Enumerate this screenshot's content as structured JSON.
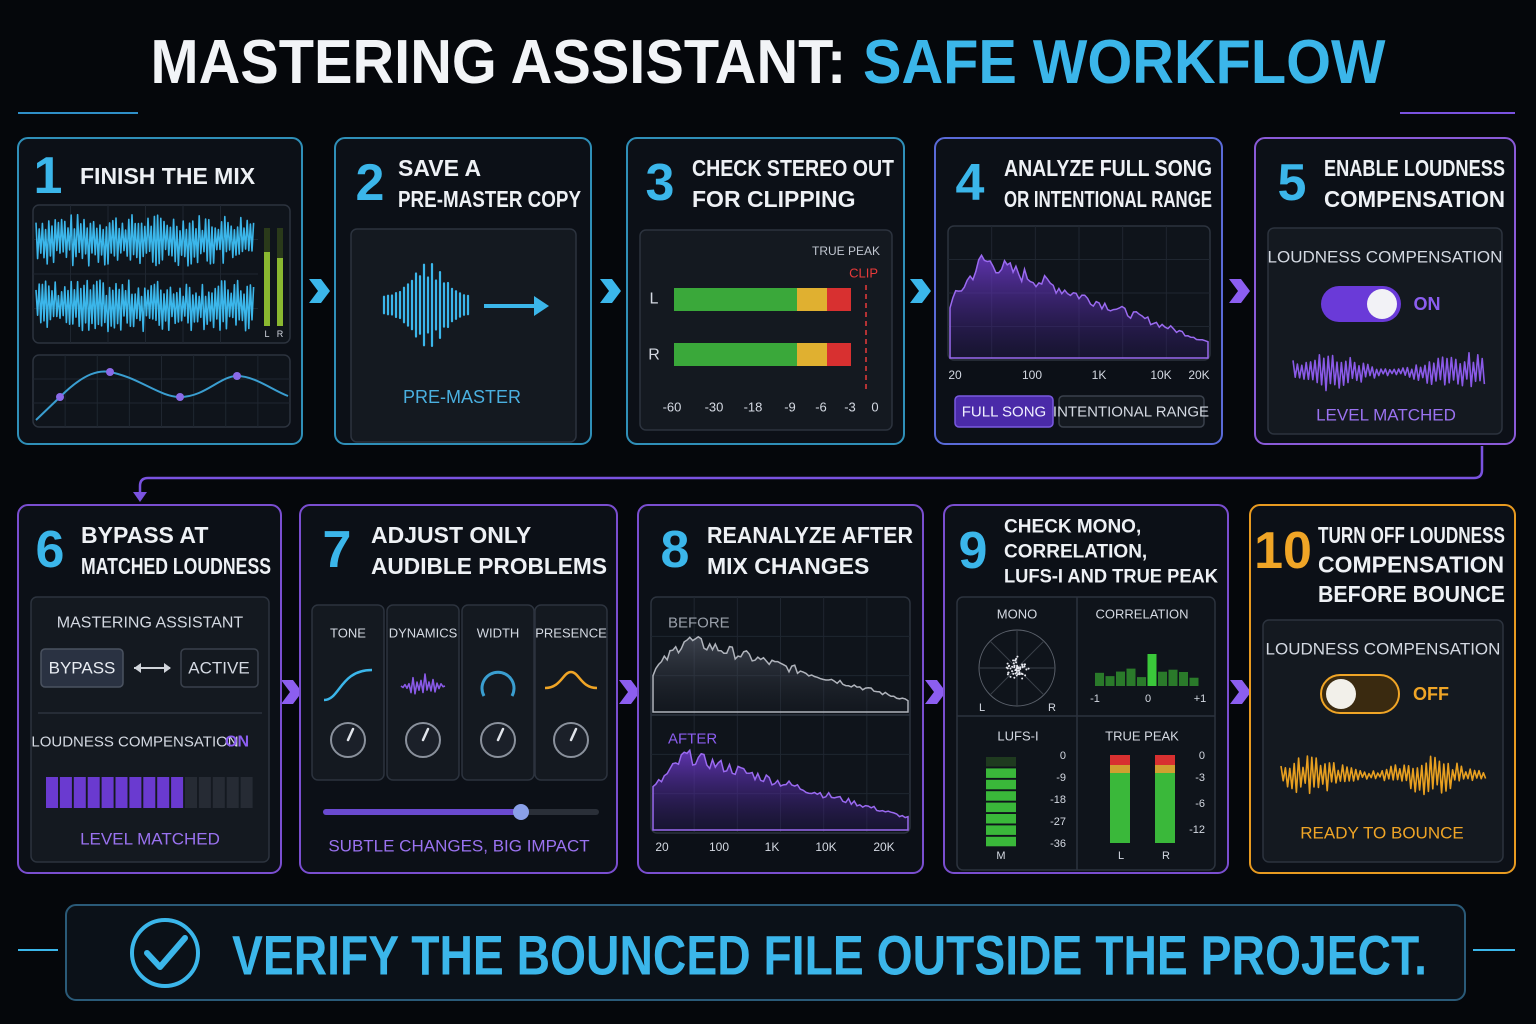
{
  "header": {
    "title": "MASTERING ASSISTANT:",
    "title_accent": "SAFE WORKFLOW"
  },
  "steps": [
    {
      "number": "1",
      "title": [
        "FINISH THE MIX"
      ],
      "meter_labels": [
        "L",
        "R"
      ]
    },
    {
      "number": "2",
      "title": [
        "SAVE A",
        "PRE-MASTER COPY"
      ],
      "label": "PRE-MASTER"
    },
    {
      "number": "3",
      "title": [
        "CHECK STEREO OUT",
        "FOR CLIPPING"
      ],
      "true_peak": "TRUE PEAK",
      "clip": "CLIP",
      "channels": [
        "L",
        "R"
      ],
      "scale": [
        "-60",
        "-30",
        "-18",
        "-9",
        "-6",
        "-3",
        "0"
      ]
    },
    {
      "number": "4",
      "title": [
        "ANALYZE FULL SONG",
        "OR INTENTIONAL RANGE"
      ],
      "freq_labels": [
        "20",
        "100",
        "1K",
        "10K",
        "20K"
      ],
      "buttons": [
        "FULL SONG",
        "INTENTIONAL RANGE"
      ]
    },
    {
      "number": "5",
      "title": [
        "ENABLE LOUDNESS",
        "COMPENSATION"
      ],
      "setting": "LOUDNESS COMPENSATION",
      "state": "ON",
      "caption": "LEVEL MATCHED"
    },
    {
      "number": "6",
      "title": [
        "BYPASS AT",
        "MATCHED LOUDNESS"
      ],
      "plugin": "MASTERING ASSISTANT",
      "buttons": [
        "BYPASS",
        "ACTIVE"
      ],
      "setting": "LOUDNESS COMPENSATION",
      "state": "ON",
      "caption": "LEVEL MATCHED"
    },
    {
      "number": "7",
      "title": [
        "ADJUST ONLY",
        "AUDIBLE PROBLEMS"
      ],
      "controls": [
        "TONE",
        "DYNAMICS",
        "WIDTH",
        "PRESENCE"
      ],
      "caption": "SUBTLE CHANGES, BIG IMPACT"
    },
    {
      "number": "8",
      "title": [
        "REANALYZE AFTER",
        "MIX CHANGES"
      ],
      "before": "BEFORE",
      "after": "AFTER",
      "freq_labels": [
        "20",
        "100",
        "1K",
        "10K",
        "20K"
      ]
    },
    {
      "number": "9",
      "title": [
        "CHECK MONO,",
        "CORRELATION,",
        "LUFS-I AND TRUE PEAK"
      ],
      "mono": {
        "label": "MONO",
        "channels": [
          "L",
          "R"
        ]
      },
      "correlation": {
        "label": "CORRELATION",
        "scale": [
          "-1",
          "0",
          "+1"
        ]
      },
      "lufs": {
        "label": "LUFS-I",
        "scale": [
          "0",
          "-9",
          "-18",
          "-27",
          "-36"
        ],
        "channel": "M"
      },
      "true_peak": {
        "label": "TRUE PEAK",
        "scale": [
          "0",
          "-3",
          "-6",
          "-12"
        ],
        "channels": [
          "L",
          "R"
        ]
      }
    },
    {
      "number": "10",
      "title": [
        "TURN OFF LOUDNESS",
        "COMPENSATION",
        "BEFORE BOUNCE"
      ],
      "setting": "LOUDNESS COMPENSATION",
      "state": "OFF",
      "caption": "READY TO BOUNCE"
    }
  ],
  "footer": {
    "text": "VERIFY THE BOUNCED FILE OUTSIDE THE PROJECT."
  }
}
